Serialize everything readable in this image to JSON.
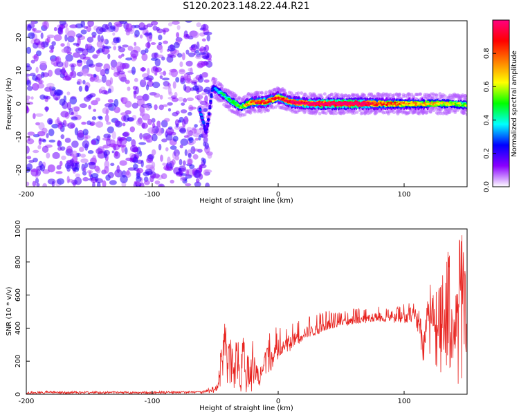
{
  "figure": {
    "title": "S120.2023.148.22.44.R21"
  },
  "chart_data": [
    {
      "type": "heatmap",
      "xlabel": "Height of straight line (km)",
      "ylabel": "Frequency (Hz)",
      "xlim": [
        -200,
        150
      ],
      "ylim": [
        -25,
        25
      ],
      "xticks": [
        -200,
        -100,
        0,
        100
      ],
      "yticks": [
        -20,
        -10,
        0,
        10,
        20
      ],
      "colorbar": {
        "label": "Normalized spectral amplitude",
        "range": [
          0,
          1
        ],
        "ticks": [
          0.0,
          0.2,
          0.4,
          0.6,
          0.8
        ],
        "tick_labels": [
          "0.0",
          "0.2",
          "0.4",
          "0.6",
          "0.8"
        ],
        "colors": [
          "#ffffff",
          "#8a00ff",
          "#0000ff",
          "#00ffff",
          "#00ff00",
          "#ffff00",
          "#ff8000",
          "#ff0000",
          "#ff0080"
        ]
      },
      "noise_region": {
        "x": [
          -200,
          -62
        ],
        "y": [
          -25,
          25
        ],
        "typical_amplitude": 0.15
      },
      "ridge": [
        {
          "x": -62,
          "y": -2,
          "amplitude": 0.25
        },
        {
          "x": -57,
          "y": -9,
          "amplitude": 0.15
        },
        {
          "x": -52,
          "y": 5,
          "amplitude": 0.2
        },
        {
          "x": -45,
          "y": 3,
          "amplitude": 0.3
        },
        {
          "x": -38,
          "y": 1,
          "amplitude": 0.35
        },
        {
          "x": -30,
          "y": -1,
          "amplitude": 0.4
        },
        {
          "x": -20,
          "y": 0.5,
          "amplitude": 0.6
        },
        {
          "x": -10,
          "y": 0.5,
          "amplitude": 0.65
        },
        {
          "x": 0,
          "y": 2,
          "amplitude": 0.6
        },
        {
          "x": 10,
          "y": 0.5,
          "amplitude": 0.7
        },
        {
          "x": 25,
          "y": 0,
          "amplitude": 0.75
        },
        {
          "x": 40,
          "y": 0,
          "amplitude": 0.85
        },
        {
          "x": 60,
          "y": 0,
          "amplitude": 0.85
        },
        {
          "x": 80,
          "y": 0,
          "amplitude": 0.6
        },
        {
          "x": 100,
          "y": 0,
          "amplitude": 0.55
        },
        {
          "x": 120,
          "y": 0,
          "amplitude": 0.5
        },
        {
          "x": 140,
          "y": 0,
          "amplitude": 0.45
        },
        {
          "x": 150,
          "y": -0.5,
          "amplitude": 0.4
        }
      ]
    },
    {
      "type": "line",
      "xlabel": "Height of straight line (km)",
      "ylabel": "SNR (10 * v/v)",
      "xlim": [
        -200,
        150
      ],
      "ylim": [
        0,
        1000
      ],
      "xticks": [
        -200,
        -100,
        0,
        100
      ],
      "yticks": [
        0,
        200,
        400,
        600,
        800,
        1000
      ],
      "series": [
        {
          "color": "#e8231f",
          "x": [
            -200,
            -150,
            -100,
            -60,
            -48,
            -45,
            -42,
            -40,
            -38,
            -35,
            -32,
            -30,
            -28,
            -25,
            -20,
            -15,
            -10,
            -5,
            0,
            5,
            10,
            20,
            30,
            40,
            50,
            60,
            70,
            80,
            90,
            100,
            105,
            110,
            115,
            120,
            125,
            130,
            135,
            140,
            145,
            150
          ],
          "y": [
            10,
            12,
            10,
            15,
            30,
            200,
            380,
            180,
            260,
            120,
            250,
            60,
            300,
            80,
            180,
            100,
            260,
            200,
            280,
            300,
            320,
            370,
            390,
            420,
            440,
            450,
            460,
            470,
            460,
            470,
            500,
            480,
            300,
            550,
            450,
            320,
            650,
            300,
            850,
            500
          ],
          "envelope_low": [
            2,
            2,
            2,
            5,
            10,
            50,
            200,
            20,
            50,
            10,
            50,
            10,
            20,
            10,
            20,
            60,
            100,
            150,
            200,
            250,
            260,
            330,
            360,
            390,
            410,
            420,
            430,
            440,
            430,
            430,
            430,
            400,
            180,
            250,
            150,
            120,
            180,
            80,
            50,
            250
          ],
          "envelope_high": [
            20,
            18,
            18,
            20,
            60,
            320,
            460,
            430,
            340,
            280,
            360,
            200,
            360,
            250,
            330,
            300,
            360,
            380,
            420,
            420,
            430,
            470,
            490,
            510,
            500,
            520,
            520,
            540,
            510,
            560,
            570,
            540,
            450,
            680,
            620,
            750,
            880,
            820,
            1000,
            770
          ]
        }
      ]
    }
  ]
}
